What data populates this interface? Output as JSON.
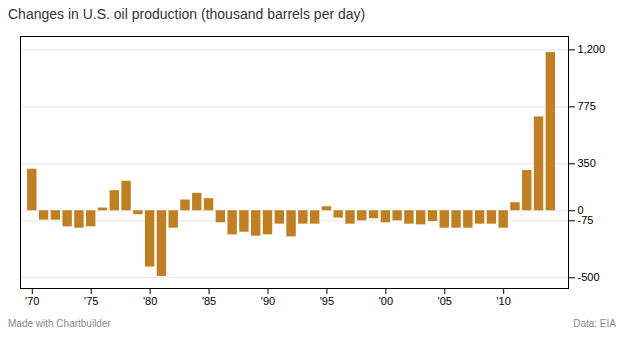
{
  "chart_data": {
    "type": "bar",
    "title": "Changes in U.S. oil production (thousand barrels per day)",
    "x": [
      1970,
      1971,
      1972,
      1973,
      1974,
      1975,
      1976,
      1977,
      1978,
      1979,
      1980,
      1981,
      1982,
      1983,
      1984,
      1985,
      1986,
      1987,
      1988,
      1989,
      1990,
      1991,
      1992,
      1993,
      1994,
      1995,
      1996,
      1997,
      1998,
      1999,
      2000,
      2001,
      2002,
      2003,
      2004,
      2005,
      2006,
      2007,
      2008,
      2009,
      2010,
      2011,
      2012,
      2013,
      2014
    ],
    "values": [
      310,
      -70,
      -70,
      -120,
      -130,
      -120,
      20,
      150,
      220,
      -30,
      -420,
      -490,
      -130,
      80,
      130,
      90,
      -90,
      -180,
      -160,
      -190,
      -180,
      -100,
      -195,
      -100,
      -100,
      30,
      -55,
      -100,
      -75,
      -60,
      -90,
      -75,
      -100,
      -105,
      -80,
      -130,
      -130,
      -130,
      -100,
      -100,
      -130,
      60,
      300,
      700,
      1180
    ],
    "color": "#c17f24",
    "xlim": [
      1969,
      2015.5
    ],
    "xticks": [
      {
        "value": 1970,
        "label": "'70"
      },
      {
        "value": 1975,
        "label": "'75"
      },
      {
        "value": 1980,
        "label": "'80"
      },
      {
        "value": 1985,
        "label": "'85"
      },
      {
        "value": 1990,
        "label": "'90"
      },
      {
        "value": 1995,
        "label": "'95"
      },
      {
        "value": 2000,
        "label": "'00"
      },
      {
        "value": 2005,
        "label": "'05"
      },
      {
        "value": 2010,
        "label": "'10"
      }
    ],
    "ylim": [
      -580,
      1300
    ],
    "yticks": [
      -500,
      -75,
      0,
      350,
      775,
      {
        "value": 1200,
        "label": "1,200"
      }
    ],
    "grid": true,
    "annotations": [
      "Made with Chartbuilder",
      "Data: EIA"
    ]
  }
}
